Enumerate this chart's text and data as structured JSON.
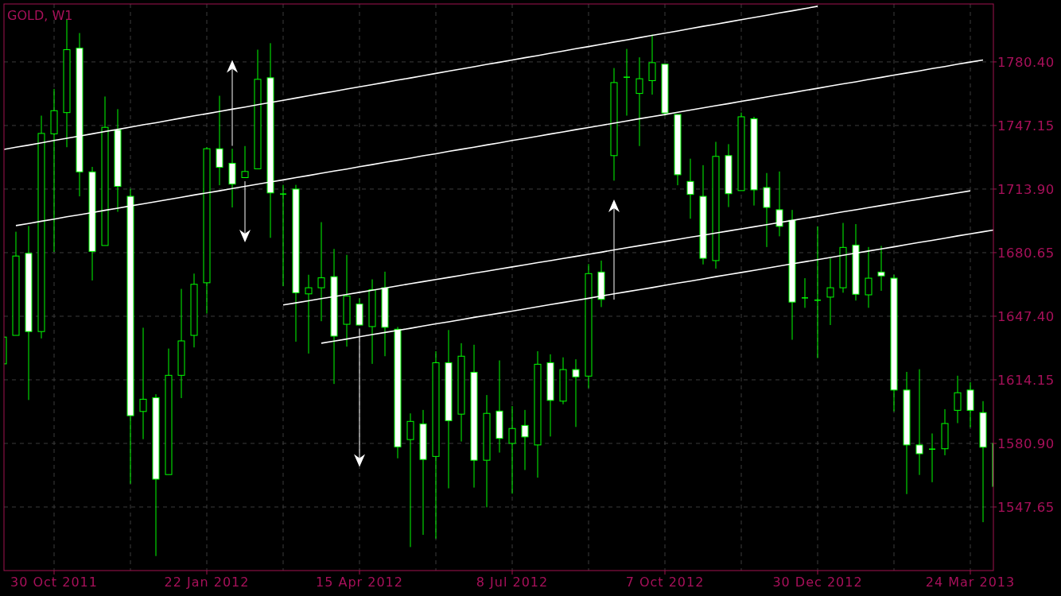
{
  "chart_data": {
    "type": "candlestick",
    "title": "GOLD, W1",
    "color": "#00ff00",
    "grid": true,
    "categories": [
      null,
      null,
      null,
      null,
      "30 Oct 2011",
      null,
      null,
      null,
      null,
      null,
      null,
      null,
      null,
      null,
      null,
      null,
      "22 Jan 2012",
      null,
      null,
      null,
      null,
      null,
      null,
      null,
      null,
      null,
      null,
      null,
      "15 Apr 2012",
      null,
      null,
      null,
      null,
      null,
      null,
      null,
      null,
      null,
      null,
      null,
      "8 Jul 2012",
      null,
      null,
      null,
      null,
      null,
      null,
      null,
      null,
      null,
      null,
      null,
      "7 Oct 2012",
      null,
      null,
      null,
      null,
      null,
      null,
      null,
      null,
      null,
      null,
      null,
      "30 Dec 2012",
      null,
      null,
      null,
      null,
      null,
      null,
      null,
      null,
      null,
      null,
      null,
      "24 Mar 2013",
      null,
      null
    ],
    "ylim": [
      1514.4,
      1810.7
    ],
    "yticks": [
      1547.65,
      {
        "value": 1580.9,
        "label": "1580.90"
      },
      1614.15,
      {
        "value": 1647.4,
        "label": "1647.40"
      },
      1680.65,
      {
        "value": 1713.9,
        "label": "1713.90"
      },
      1747.15,
      {
        "value": 1780.4,
        "label": "1780.40"
      }
    ],
    "ohlc": [
      [
        1622.5,
        1636.5,
        1622.5,
        1636.5
      ],
      [
        1637.4,
        1691.6,
        1637.4,
        1678.9
      ],
      [
        1680.3,
        1694.6,
        1603.6,
        1639.4
      ],
      [
        1639.4,
        1752.3,
        1635.8,
        1743.0
      ],
      [
        1742.8,
        1766.3,
        1681.0,
        1754.9
      ],
      [
        1753.9,
        1802.7,
        1735.8,
        1786.8
      ],
      [
        1787.6,
        1795.5,
        1710.1,
        1722.9
      ],
      [
        1722.9,
        1725.5,
        1666.1,
        1681.3
      ],
      [
        1684.4,
        1762.3,
        1684.4,
        1746.2
      ],
      [
        1744.8,
        1755.7,
        1702.0,
        1715.3
      ],
      [
        1710.1,
        1714.1,
        1559.8,
        1595.4
      ],
      [
        1597.6,
        1641.4,
        1583.1,
        1604.0
      ],
      [
        1604.8,
        1606.6,
        1522.0,
        1562.2
      ],
      [
        1564.6,
        1630.5,
        1564.6,
        1616.5
      ],
      [
        1616.5,
        1661.7,
        1604.6,
        1634.5
      ],
      [
        1637.4,
        1669.7,
        1631.1,
        1664.1
      ],
      [
        1664.9,
        1735.8,
        1648.8,
        1735.0
      ],
      [
        1735.0,
        1762.7,
        1715.9,
        1725.3
      ],
      [
        1727.4,
        1735.0,
        1704.3,
        1716.5
      ],
      [
        1719.9,
        1736.4,
        1719.9,
        1723.1
      ],
      [
        1724.5,
        1786.8,
        1724.5,
        1771.3
      ],
      [
        1772.1,
        1790.2,
        1688.4,
        1711.9
      ],
      [
        1711.3,
        1716.1,
        1663.1,
        1711.3
      ],
      [
        1713.9,
        1716.1,
        1634.1,
        1659.7
      ],
      [
        1659.1,
        1669.1,
        1627.9,
        1662.3
      ],
      [
        1662.3,
        1696.6,
        1644.8,
        1667.5
      ],
      [
        1668.1,
        1682.6,
        1612.0,
        1637.0
      ],
      [
        1643.2,
        1679.5,
        1631.5,
        1658.0
      ],
      [
        1653.8,
        1656.8,
        1642.8,
        1642.8
      ],
      [
        1642.0,
        1666.7,
        1622.5,
        1661.3
      ],
      [
        1662.3,
        1670.7,
        1626.5,
        1641.6
      ],
      [
        1640.6,
        1641.8,
        1573.1,
        1579.1
      ],
      [
        1582.9,
        1596.6,
        1526.7,
        1592.4
      ],
      [
        1591.1,
        1598.4,
        1533.1,
        1572.5
      ],
      [
        1574.1,
        1629.1,
        1531.1,
        1623.1
      ],
      [
        1623.1,
        1640.2,
        1557.4,
        1592.8
      ],
      [
        1596.2,
        1633.3,
        1581.9,
        1626.5
      ],
      [
        1618.1,
        1632.5,
        1557.8,
        1572.1
      ],
      [
        1572.1,
        1606.2,
        1547.5,
        1596.6
      ],
      [
        1597.8,
        1624.3,
        1576.1,
        1583.5
      ],
      [
        1580.9,
        1600.4,
        1554.6,
        1588.7
      ],
      [
        1590.3,
        1598.4,
        1567.0,
        1584.3
      ],
      [
        1580.1,
        1629.1,
        1563.0,
        1622.3
      ],
      [
        1623.1,
        1627.5,
        1584.5,
        1603.4
      ],
      [
        1603.0,
        1625.9,
        1601.4,
        1619.5
      ],
      [
        1619.5,
        1624.9,
        1589.5,
        1615.7
      ],
      [
        1616.1,
        1674.7,
        1609.8,
        1669.7
      ],
      [
        1670.5,
        1676.5,
        1652.2,
        1656.2
      ],
      [
        1731.4,
        1777.2,
        1718.3,
        1769.6
      ],
      [
        1772.4,
        1787.2,
        1752.3,
        1772.4
      ],
      [
        1763.9,
        1782.8,
        1736.4,
        1771.6
      ],
      [
        1770.6,
        1794.7,
        1763.3,
        1780.0
      ],
      [
        1779.2,
        1779.2,
        1752.3,
        1753.7
      ],
      [
        1752.9,
        1752.9,
        1715.9,
        1721.4
      ],
      [
        1717.9,
        1729.8,
        1698.4,
        1711.1
      ],
      [
        1710.1,
        1726.4,
        1674.5,
        1677.7
      ],
      [
        1676.5,
        1738.6,
        1672.3,
        1731.0
      ],
      [
        1731.4,
        1737.4,
        1704.5,
        1711.5
      ],
      [
        1713.1,
        1753.9,
        1713.1,
        1751.7
      ],
      [
        1750.7,
        1751.7,
        1705.3,
        1713.5
      ],
      [
        1714.7,
        1722.3,
        1683.6,
        1704.3
      ],
      [
        1703.1,
        1723.1,
        1689.2,
        1694.4
      ],
      [
        1697.6,
        1703.0,
        1635.1,
        1654.8
      ],
      [
        1657.0,
        1667.3,
        1651.8,
        1657.0
      ],
      [
        1655.8,
        1694.4,
        1625.5,
        1655.8
      ],
      [
        1657.4,
        1677.7,
        1642.8,
        1662.3
      ],
      [
        1662.3,
        1696.2,
        1659.7,
        1683.4
      ],
      [
        1684.6,
        1695.6,
        1655.6,
        1658.9
      ],
      [
        1658.6,
        1683.6,
        1651.8,
        1667.3
      ],
      [
        1670.5,
        1684.2,
        1660.7,
        1668.5
      ],
      [
        1667.3,
        1669.1,
        1597.6,
        1608.8
      ],
      [
        1608.8,
        1618.3,
        1554.4,
        1580.1
      ],
      [
        1580.1,
        1619.7,
        1564.4,
        1575.5
      ],
      [
        1577.9,
        1586.1,
        1560.6,
        1577.9
      ],
      [
        1578.1,
        1598.8,
        1574.7,
        1591.3
      ],
      [
        1598.2,
        1616.3,
        1591.5,
        1607.4
      ],
      [
        1608.8,
        1612.9,
        1589.3,
        1598.2
      ],
      [
        1597.0,
        1603.0,
        1539.7,
        1578.9
      ],
      [
        1580.9,
        1580.9,
        1558.4,
        1558.4
      ]
    ],
    "series": [
      {
        "type": "line",
        "color": "#ffffff",
        "values": [
          1734.6,
          1735.8,
          1736.9,
          1738.1,
          1739.3,
          1740.5,
          1741.6,
          1742.8,
          1744.0,
          1745.1,
          1746.3,
          1747.5,
          1748.6,
          1749.8,
          1751.0,
          1752.2,
          1753.3,
          1754.5,
          1755.7,
          1756.8,
          1758.0,
          1759.2,
          1760.3,
          1761.5,
          1762.7,
          1763.9,
          1765.0,
          1766.2,
          1767.4,
          1768.5,
          1769.7,
          1770.9,
          1772.0,
          1773.2,
          1774.4,
          1775.6,
          1776.7,
          1777.9,
          1779.1,
          1780.2,
          1781.4,
          1782.6,
          1783.7,
          1784.9,
          1786.1,
          1787.3,
          1788.4,
          1789.6,
          1790.8,
          1791.9,
          1793.1,
          1794.3,
          1795.4,
          1796.6,
          1797.8,
          1799.0,
          1800.1,
          1801.3,
          1802.5,
          1803.6,
          1804.8,
          1806.0,
          1807.1,
          1808.3,
          1809.5,
          null,
          null,
          null,
          null,
          null,
          null,
          null,
          null,
          null,
          null,
          null,
          null,
          null,
          null
        ]
      },
      {
        "type": "line",
        "color": "#ffffff",
        "values": [
          null,
          1694.8,
          1695.9,
          1697.1,
          1698.2,
          1699.4,
          1700.5,
          1701.6,
          1702.8,
          1703.9,
          1705.1,
          1706.2,
          1707.3,
          1708.5,
          1709.6,
          1710.8,
          1711.9,
          1713.0,
          1714.2,
          1715.3,
          1716.5,
          1717.6,
          1718.7,
          1719.9,
          1721.0,
          1722.2,
          1723.3,
          1724.4,
          1725.6,
          1726.7,
          1727.9,
          1729.0,
          1730.1,
          1731.3,
          1732.4,
          1733.6,
          1734.7,
          1735.8,
          1737.0,
          1738.1,
          1739.3,
          1740.4,
          1741.5,
          1742.7,
          1743.8,
          1745.0,
          1746.1,
          1747.2,
          1748.4,
          1749.5,
          1750.7,
          1751.8,
          1752.9,
          1754.1,
          1755.2,
          1756.4,
          1757.5,
          1758.6,
          1759.8,
          1760.9,
          1762.1,
          1763.2,
          1764.3,
          1765.5,
          1766.6,
          1767.8,
          1768.9,
          1770.0,
          1771.2,
          1772.3,
          1773.5,
          1774.6,
          1775.7,
          1776.9,
          1778.0,
          1779.2,
          1780.3,
          1781.4,
          null
        ]
      },
      {
        "type": "line",
        "color": "#ffffff",
        "values": [
          null,
          null,
          null,
          null,
          null,
          null,
          null,
          null,
          null,
          null,
          null,
          null,
          null,
          null,
          null,
          null,
          null,
          null,
          null,
          null,
          null,
          null,
          1653.3,
          1654.4,
          1655.5,
          1656.6,
          1657.7,
          1658.8,
          1659.9,
          1661.0,
          1662.1,
          1663.3,
          1664.4,
          1665.5,
          1666.6,
          1667.7,
          1668.8,
          1669.9,
          1671.0,
          1672.1,
          1673.2,
          1674.3,
          1675.4,
          1676.5,
          1677.6,
          1678.7,
          1679.8,
          1680.9,
          1682.1,
          1683.2,
          1684.3,
          1685.4,
          1686.5,
          1687.6,
          1688.7,
          1689.8,
          1690.9,
          1692.0,
          1693.1,
          1694.2,
          1695.3,
          1696.4,
          1697.5,
          1698.6,
          1699.7,
          1700.9,
          1702.0,
          1703.1,
          1704.2,
          1705.3,
          1706.4,
          1707.5,
          1708.6,
          1709.7,
          1710.8,
          1711.9,
          1713.0,
          null,
          null
        ]
      },
      {
        "type": "line",
        "color": "#ffffff",
        "values": [
          null,
          null,
          null,
          null,
          null,
          null,
          null,
          null,
          null,
          null,
          null,
          null,
          null,
          null,
          null,
          null,
          null,
          null,
          null,
          null,
          null,
          null,
          null,
          null,
          null,
          1633.3,
          1634.4,
          1635.5,
          1636.7,
          1637.8,
          1638.9,
          1640.0,
          1641.1,
          1642.3,
          1643.4,
          1644.5,
          1645.6,
          1646.8,
          1647.9,
          1649.0,
          1650.1,
          1651.2,
          1652.4,
          1653.5,
          1654.6,
          1655.7,
          1656.8,
          1658.0,
          1659.1,
          1660.2,
          1661.3,
          1662.4,
          1663.6,
          1664.7,
          1665.8,
          1666.9,
          1668.1,
          1669.2,
          1670.3,
          1671.4,
          1672.5,
          1673.7,
          1674.8,
          1675.9,
          1677.0,
          1678.1,
          1679.3,
          1680.4,
          1681.5,
          1682.6,
          1683.7,
          1684.9,
          1686.0,
          1687.1,
          1688.2,
          1689.4,
          1690.5,
          1691.6,
          1692.7
        ]
      }
    ]
  }
}
